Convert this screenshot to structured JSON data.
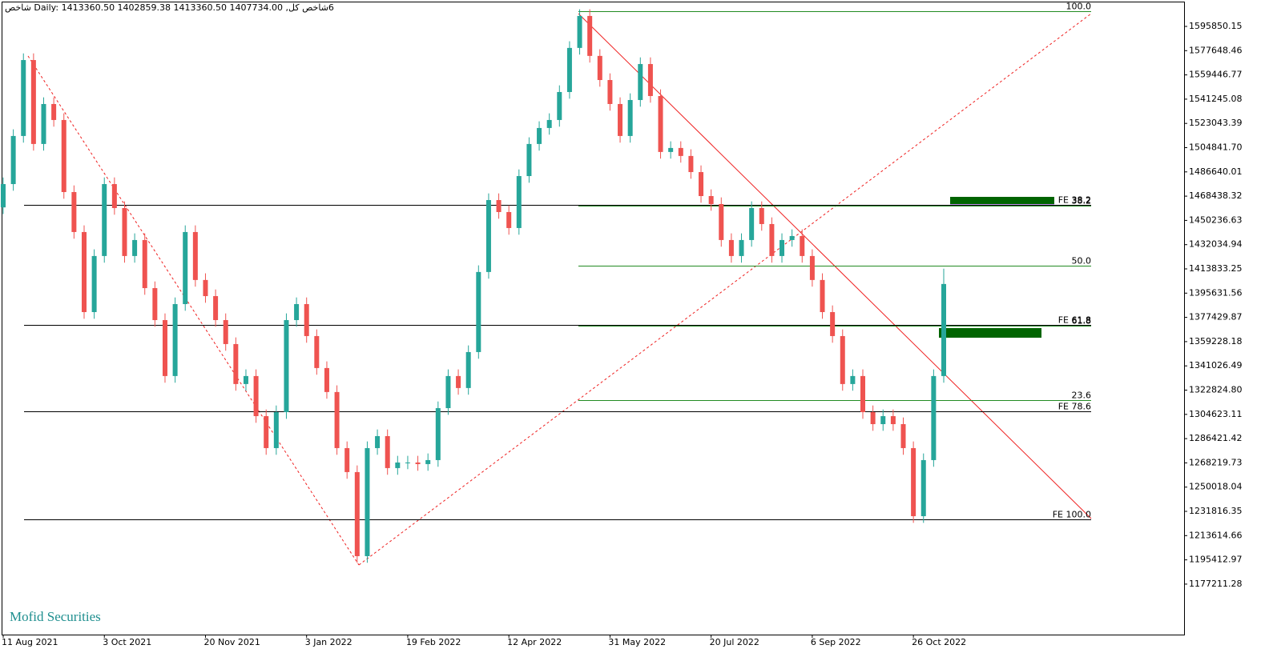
{
  "chart_data": {
    "type": "candlestick",
    "header": "6شاخص کل, Daily:  1413360.50 1402859.38 1413360.50 1407734.00  شاخص",
    "watermark": "Mofid Securities",
    "up_color": "#26a69a",
    "down_color": "#ef5350",
    "open": [
      1460000,
      1477500,
      1513600,
      1570600,
      1507600,
      1537600,
      1525600,
      1471500,
      1441500,
      1381400,
      1423500,
      1477500,
      1459500,
      1423500,
      1435500,
      1399400,
      1375400,
      1333400,
      1387400,
      1441500,
      1405500,
      1393400,
      1375400,
      1357400,
      1327400,
      1333400,
      1303300,
      1279300,
      1306300,
      1375400,
      1387400,
      1363400,
      1339400,
      1321400,
      1279300,
      1261300,
      1198200,
      1279300,
      1288300,
      1264300,
      1268500,
      1268500,
      1267300,
      1270300,
      1309300,
      1333400,
      1324400,
      1351400,
      1411500,
      1465500,
      1456500,
      1444500,
      1483500,
      1507600,
      1519600,
      1525600,
      1546600,
      1579700,
      1603700,
      1573700,
      1555600,
      1537600,
      1513600,
      1540600,
      1567600,
      1543600,
      1501600,
      1504600,
      1498600,
      1486500,
      1468500,
      1462500,
      1435500,
      1423500,
      1435500,
      1459500,
      1447500,
      1423500,
      1435500,
      1438500,
      1423500,
      1405500,
      1381400,
      1363400,
      1327400,
      1333400,
      1306300,
      1297300,
      1303300,
      1297300,
      1279300,
      1228200,
      1270300,
      1333400
    ],
    "high": [
      1482500,
      1518600,
      1575600,
      1575600,
      1542600,
      1542600,
      1530600,
      1476500,
      1446500,
      1428500,
      1482500,
      1482500,
      1464500,
      1440500,
      1440500,
      1404400,
      1380400,
      1392400,
      1446500,
      1446500,
      1410500,
      1398400,
      1380400,
      1362400,
      1338400,
      1338400,
      1308300,
      1311300,
      1380400,
      1392400,
      1392400,
      1368400,
      1344400,
      1326400,
      1284300,
      1266300,
      1284300,
      1293300,
      1293300,
      1273500,
      1273500,
      1273500,
      1275300,
      1314300,
      1338400,
      1338400,
      1356400,
      1416500,
      1470500,
      1470500,
      1461500,
      1488500,
      1512600,
      1524600,
      1530600,
      1551600,
      1584700,
      1608700,
      1608700,
      1578700,
      1560600,
      1542600,
      1545600,
      1572600,
      1572600,
      1548600,
      1509600,
      1509600,
      1503600,
      1491500,
      1473500,
      1467500,
      1440500,
      1440500,
      1464500,
      1464500,
      1452500,
      1440500,
      1443500,
      1443500,
      1428500,
      1410500,
      1386400,
      1368400,
      1338400,
      1338400,
      1311300,
      1308300,
      1308300,
      1302300,
      1284300,
      1275300,
      1338400,
      1414000
    ],
    "low": [
      1455000,
      1472500,
      1508600,
      1502600,
      1502600,
      1520600,
      1466500,
      1436500,
      1376400,
      1376400,
      1418500,
      1454500,
      1418500,
      1418500,
      1394400,
      1370400,
      1328400,
      1328400,
      1382400,
      1400500,
      1388400,
      1370400,
      1352400,
      1322400,
      1322400,
      1298300,
      1274300,
      1274300,
      1301300,
      1370400,
      1358400,
      1334400,
      1316400,
      1274300,
      1256300,
      1193200,
      1193200,
      1274300,
      1259300,
      1259300,
      1263500,
      1262300,
      1262300,
      1265300,
      1304300,
      1319400,
      1319400,
      1346400,
      1406500,
      1451500,
      1439500,
      1439500,
      1478500,
      1502600,
      1514600,
      1520600,
      1541600,
      1574700,
      1568700,
      1550600,
      1532600,
      1508600,
      1508600,
      1535600,
      1538600,
      1496600,
      1496600,
      1493600,
      1481500,
      1463500,
      1457500,
      1430500,
      1418500,
      1418500,
      1430500,
      1442500,
      1418500,
      1418500,
      1430500,
      1418500,
      1400500,
      1376400,
      1358400,
      1322400,
      1322400,
      1301300,
      1292300,
      1292300,
      1292300,
      1274300,
      1223200,
      1223200,
      1265300,
      1328400
    ],
    "close": [
      1477500,
      1513600,
      1570600,
      1507600,
      1537600,
      1525600,
      1471500,
      1441500,
      1381400,
      1423500,
      1477500,
      1459500,
      1423500,
      1435500,
      1399400,
      1375400,
      1333400,
      1387400,
      1441500,
      1405500,
      1393400,
      1375400,
      1357400,
      1327400,
      1333400,
      1303300,
      1279300,
      1306300,
      1375400,
      1387400,
      1363400,
      1339400,
      1321400,
      1279300,
      1261300,
      1198200,
      1279300,
      1288300,
      1264300,
      1268500,
      1268500,
      1267300,
      1270300,
      1309300,
      1333400,
      1324400,
      1351400,
      1411500,
      1465500,
      1456500,
      1444500,
      1483500,
      1507600,
      1519600,
      1525600,
      1546600,
      1579700,
      1603700,
      1573700,
      1555600,
      1537600,
      1513600,
      1540600,
      1567600,
      1543600,
      1501600,
      1504600,
      1498600,
      1486500,
      1468500,
      1462500,
      1435500,
      1423500,
      1435500,
      1459500,
      1447500,
      1423500,
      1435500,
      1438500,
      1423500,
      1405500,
      1381400,
      1363400,
      1327400,
      1333400,
      1306300,
      1297300,
      1303300,
      1297300,
      1279300,
      1228200,
      1270300,
      1333400,
      1402500
    ],
    "xticks": [
      {
        "value": 0,
        "label": "11 Aug 2021"
      },
      {
        "value": 10,
        "label": "3 Oct 2021"
      },
      {
        "value": 20,
        "label": "20 Nov 2021"
      },
      {
        "value": 30,
        "label": "3 Jan 2022"
      },
      {
        "value": 40,
        "label": "19 Feb 2022"
      },
      {
        "value": 50,
        "label": "12 Apr 2022"
      },
      {
        "value": 60,
        "label": "31 May 2022"
      },
      {
        "value": 70,
        "label": "20 Jul 2022"
      },
      {
        "value": 80,
        "label": "6 Sep 2022"
      },
      {
        "value": 90,
        "label": "26 Oct 2022"
      }
    ],
    "ylim": [
      1139318,
      1615673
    ],
    "yticks": [
      1595850.15,
      1577648.46,
      1559446.77,
      1541245.08,
      1523043.39,
      {
        "value": 1504841.7,
        "label": "1504841.70"
      },
      1486640.01,
      1468438.32,
      1450236.63,
      1432034.94,
      1413833.25,
      1395631.56,
      1377429.87,
      1359228.18,
      1341026.49,
      {
        "value": 1322824.8,
        "label": "1322824.80"
      },
      1304623.11,
      1286421.42,
      1268219.73,
      1250018.04,
      1231816.35,
      1213614.66,
      1195412.97,
      1177211.28
    ],
    "levels": [
      {
        "label": "100.0",
        "value": 1607263,
        "color": "#228b22"
      },
      {
        "label": "38.2",
        "value": 1461293,
        "color": "#228b22"
      },
      {
        "label": "FE 38.2",
        "value": 1461894,
        "color": "#000000"
      },
      {
        "label": "50.0",
        "value": 1416240,
        "color": "#228b22"
      },
      {
        "label": "61.8",
        "value": 1371188,
        "color": "#228b22"
      },
      {
        "label": "FE 61.8",
        "value": 1371790,
        "color": "#000000"
      },
      {
        "label": "23.6",
        "value": 1315322,
        "color": "#228b22"
      },
      {
        "label": "FE 78.6",
        "value": 1306915,
        "color": "#000000"
      },
      {
        "label": "FE 100.0",
        "value": 1225820,
        "color": "#000000"
      }
    ]
  }
}
